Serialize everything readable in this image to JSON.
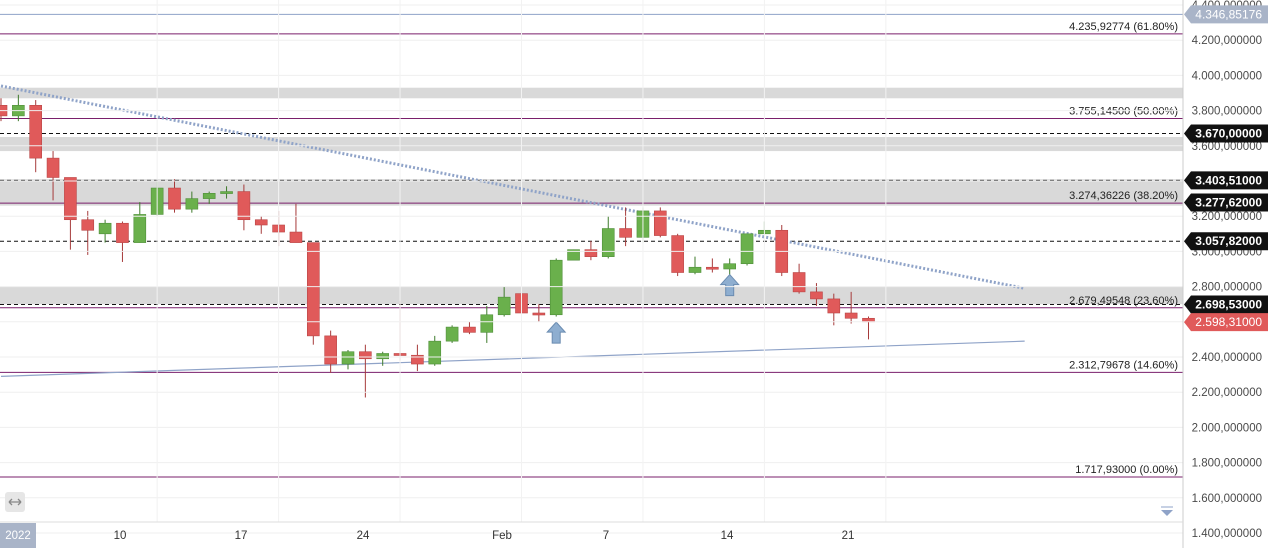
{
  "colors": {
    "up": "#6ab04c",
    "down": "#e05a5a",
    "zone": "#d9d9d9",
    "fib": "#7a1f6b",
    "dashed": "#111111",
    "trend_down": "#8fa3c8",
    "trend_up": "#8fa3c8",
    "arrow": "#8eaed0",
    "top_line": "#8fa3c8",
    "badge_dark": "#111111",
    "badge_price": "#e05a5a",
    "badge_top": "#a9b4c8"
  },
  "x_labels": [
    "2022",
    "10",
    "17",
    "24",
    "Feb",
    "7",
    "14",
    "21"
  ],
  "icons": {
    "settings": "resize-handle-icon",
    "scroll": "chevron-down-icon"
  },
  "chart_data": {
    "type": "candlestick",
    "ylim": [
      1350000,
      4400000
    ],
    "yticks": [
      "4.400,000000",
      "4.200,000000",
      "4.000,000000",
      "3.800,000000",
      "3.600,000000",
      "3.400,000000",
      "3.200,000000",
      "3.000,000000",
      "2.800,000000",
      "2.600,000000",
      "2.400,000000",
      "2.200,000000",
      "2.000,000000",
      "1.800,000000",
      "1.600,000000",
      "1.400,000000"
    ],
    "ytick_values": [
      4400000,
      4200000,
      4000000,
      3800000,
      3600000,
      3400000,
      3200000,
      3000000,
      2800000,
      2600000,
      2400000,
      2200000,
      2000000,
      1800000,
      1600000,
      1400000
    ],
    "candles": [
      {
        "d": "2022-01-01",
        "o": 3830000,
        "h": 3870000,
        "l": 3740000,
        "c": 3770000
      },
      {
        "d": "2022-01-02",
        "o": 3770000,
        "h": 3890000,
        "l": 3740000,
        "c": 3830000
      },
      {
        "d": "2022-01-03",
        "o": 3830000,
        "h": 3860000,
        "l": 3450000,
        "c": 3530000
      },
      {
        "d": "2022-01-04",
        "o": 3530000,
        "h": 3570000,
        "l": 3290000,
        "c": 3420000
      },
      {
        "d": "2022-01-05",
        "o": 3420000,
        "h": 3420000,
        "l": 3010000,
        "c": 3180000
      },
      {
        "d": "2022-01-06",
        "o": 3180000,
        "h": 3230000,
        "l": 2980000,
        "c": 3120000
      },
      {
        "d": "2022-01-07",
        "o": 3100000,
        "h": 3180000,
        "l": 3050000,
        "c": 3160000
      },
      {
        "d": "2022-01-08",
        "o": 3160000,
        "h": 3170000,
        "l": 2940000,
        "c": 3050000
      },
      {
        "d": "2022-01-09",
        "o": 3050000,
        "h": 3280000,
        "l": 3050000,
        "c": 3210000
      },
      {
        "d": "2022-01-10",
        "o": 3210000,
        "h": 3400000,
        "l": 3200000,
        "c": 3360000
      },
      {
        "d": "2022-01-11",
        "o": 3360000,
        "h": 3410000,
        "l": 3220000,
        "c": 3240000
      },
      {
        "d": "2022-01-12",
        "o": 3240000,
        "h": 3340000,
        "l": 3220000,
        "c": 3300000
      },
      {
        "d": "2022-01-13",
        "o": 3300000,
        "h": 3340000,
        "l": 3270000,
        "c": 3330000
      },
      {
        "d": "2022-01-14",
        "o": 3330000,
        "h": 3370000,
        "l": 3300000,
        "c": 3340000
      },
      {
        "d": "2022-01-15",
        "o": 3340000,
        "h": 3380000,
        "l": 3120000,
        "c": 3180000
      },
      {
        "d": "2022-01-16",
        "o": 3180000,
        "h": 3200000,
        "l": 3100000,
        "c": 3150000
      },
      {
        "d": "2022-01-17",
        "o": 3150000,
        "h": 3230000,
        "l": 3030000,
        "c": 3110000
      },
      {
        "d": "2022-01-18",
        "o": 3110000,
        "h": 3270000,
        "l": 3050000,
        "c": 3050000
      },
      {
        "d": "2022-01-19",
        "o": 3050000,
        "h": 3050000,
        "l": 2470000,
        "c": 2520000
      },
      {
        "d": "2022-01-20",
        "o": 2520000,
        "h": 2550000,
        "l": 2310000,
        "c": 2360000
      },
      {
        "d": "2022-01-21",
        "o": 2360000,
        "h": 2440000,
        "l": 2330000,
        "c": 2430000
      },
      {
        "d": "2022-01-22",
        "o": 2430000,
        "h": 2470000,
        "l": 2170000,
        "c": 2390000
      },
      {
        "d": "2022-01-23",
        "o": 2390000,
        "h": 2430000,
        "l": 2350000,
        "c": 2420000
      },
      {
        "d": "2022-01-24",
        "o": 2420000,
        "h": 2720000,
        "l": 2380000,
        "c": 2410000
      },
      {
        "d": "2022-01-25",
        "o": 2410000,
        "h": 2470000,
        "l": 2320000,
        "c": 2360000
      },
      {
        "d": "2022-01-26",
        "o": 2360000,
        "h": 2520000,
        "l": 2350000,
        "c": 2490000
      },
      {
        "d": "2022-01-27",
        "o": 2490000,
        "h": 2580000,
        "l": 2480000,
        "c": 2570000
      },
      {
        "d": "2022-01-28",
        "o": 2570000,
        "h": 2600000,
        "l": 2530000,
        "c": 2540000
      },
      {
        "d": "2022-01-29",
        "o": 2540000,
        "h": 2690000,
        "l": 2480000,
        "c": 2640000
      },
      {
        "d": "2022-01-30",
        "o": 2640000,
        "h": 2800000,
        "l": 2630000,
        "c": 2740000
      },
      {
        "d": "2022-01-31",
        "o": 2760000,
        "h": 2780000,
        "l": 2620000,
        "c": 2650000
      },
      {
        "d": "2022-02-01",
        "o": 2650000,
        "h": 2700000,
        "l": 2600000,
        "c": 2640000
      },
      {
        "d": "2022-02-02",
        "o": 2640000,
        "h": 2960000,
        "l": 2630000,
        "c": 2950000
      },
      {
        "d": "2022-02-03",
        "o": 2950000,
        "h": 3010000,
        "l": 2950000,
        "c": 3010000
      },
      {
        "d": "2022-02-04",
        "o": 3010000,
        "h": 3060000,
        "l": 2950000,
        "c": 2970000
      },
      {
        "d": "2022-02-05",
        "o": 2970000,
        "h": 3200000,
        "l": 2960000,
        "c": 3130000
      },
      {
        "d": "2022-02-06",
        "o": 3130000,
        "h": 3250000,
        "l": 3030000,
        "c": 3080000
      },
      {
        "d": "2022-02-07",
        "o": 3080000,
        "h": 3250000,
        "l": 3050000,
        "c": 3230000
      },
      {
        "d": "2022-02-08",
        "o": 3230000,
        "h": 3250000,
        "l": 3080000,
        "c": 3090000
      },
      {
        "d": "2022-02-09",
        "o": 3090000,
        "h": 3100000,
        "l": 2860000,
        "c": 2880000
      },
      {
        "d": "2022-02-10",
        "o": 2880000,
        "h": 2970000,
        "l": 2870000,
        "c": 2910000
      },
      {
        "d": "2022-02-11",
        "o": 2910000,
        "h": 2960000,
        "l": 2880000,
        "c": 2900000
      },
      {
        "d": "2022-02-12",
        "o": 2900000,
        "h": 2960000,
        "l": 2840000,
        "c": 2930000
      },
      {
        "d": "2022-02-13",
        "o": 2930000,
        "h": 3100000,
        "l": 2920000,
        "c": 3100000
      },
      {
        "d": "2022-02-14",
        "o": 3100000,
        "h": 3170000,
        "l": 3100000,
        "c": 3120000
      },
      {
        "d": "2022-02-15",
        "o": 3120000,
        "h": 3150000,
        "l": 2860000,
        "c": 2880000
      },
      {
        "d": "2022-02-16",
        "o": 2880000,
        "h": 2930000,
        "l": 2760000,
        "c": 2770000
      },
      {
        "d": "2022-02-17",
        "o": 2770000,
        "h": 2820000,
        "l": 2690000,
        "c": 2730000
      },
      {
        "d": "2022-02-18",
        "o": 2730000,
        "h": 2760000,
        "l": 2580000,
        "c": 2650000
      },
      {
        "d": "2022-02-19",
        "o": 2650000,
        "h": 2770000,
        "l": 2590000,
        "c": 2620000
      },
      {
        "d": "2022-02-20",
        "o": 2620000,
        "h": 2630000,
        "l": 2500000,
        "c": 2600000
      }
    ],
    "zones": [
      {
        "top": 3930000,
        "bottom": 3870000
      },
      {
        "top": 3650000,
        "bottom": 3570000
      },
      {
        "top": 3410000,
        "bottom": 3260000
      },
      {
        "top": 2800000,
        "bottom": 2700000
      }
    ],
    "fib_levels": [
      {
        "value": 4235927.74,
        "label": "4.235,92774 (61.80%)"
      },
      {
        "value": 3755145,
        "label": "3.755,14500 (50.00%)"
      },
      {
        "value": 3274362.26,
        "label": "3.274,36226 (38.20%)"
      },
      {
        "value": 2679495.48,
        "label": "2.679,49548 (23.60%)"
      },
      {
        "value": 2312796.78,
        "label": "2.312,79678 (14.60%)"
      },
      {
        "value": 1717930,
        "label": "1.717,93000 (0.00%)"
      }
    ],
    "dashed_levels": [
      {
        "value": 3670000,
        "label": "3.670,00000"
      },
      {
        "value": 3403510,
        "label": "3.403,51000"
      },
      {
        "value": 3057820,
        "label": "3.057,82000"
      },
      {
        "value": 2698530,
        "label": "2.698,53000"
      }
    ],
    "top_level": {
      "value": 4346851.76,
      "label": "4.346,85176"
    },
    "current_price": {
      "value": 2598310,
      "label": "2.598,31000"
    },
    "price_badges": [
      {
        "value": 3670000,
        "label": "3.670,00000"
      },
      {
        "value": 3403510,
        "label": "3.403,51000"
      },
      {
        "value": 3277620,
        "label": "3.277,62000"
      },
      {
        "value": 3057820,
        "label": "3.057,82000"
      },
      {
        "value": 2698530,
        "label": "2.698,53000"
      }
    ],
    "trendlines": [
      {
        "style": "dotted",
        "from": {
          "d": "2022-01-01",
          "v": 3940000
        },
        "to": {
          "d": "2022-02-29",
          "v": 2790000
        }
      },
      {
        "style": "solid",
        "from": {
          "d": "2022-01-01",
          "v": 2290000
        },
        "to": {
          "d": "2022-02-29",
          "v": 2490000
        }
      }
    ],
    "arrows": [
      {
        "d": "2022-02-02",
        "v": 2530000
      },
      {
        "d": "2022-02-12",
        "v": 2800000
      }
    ]
  }
}
